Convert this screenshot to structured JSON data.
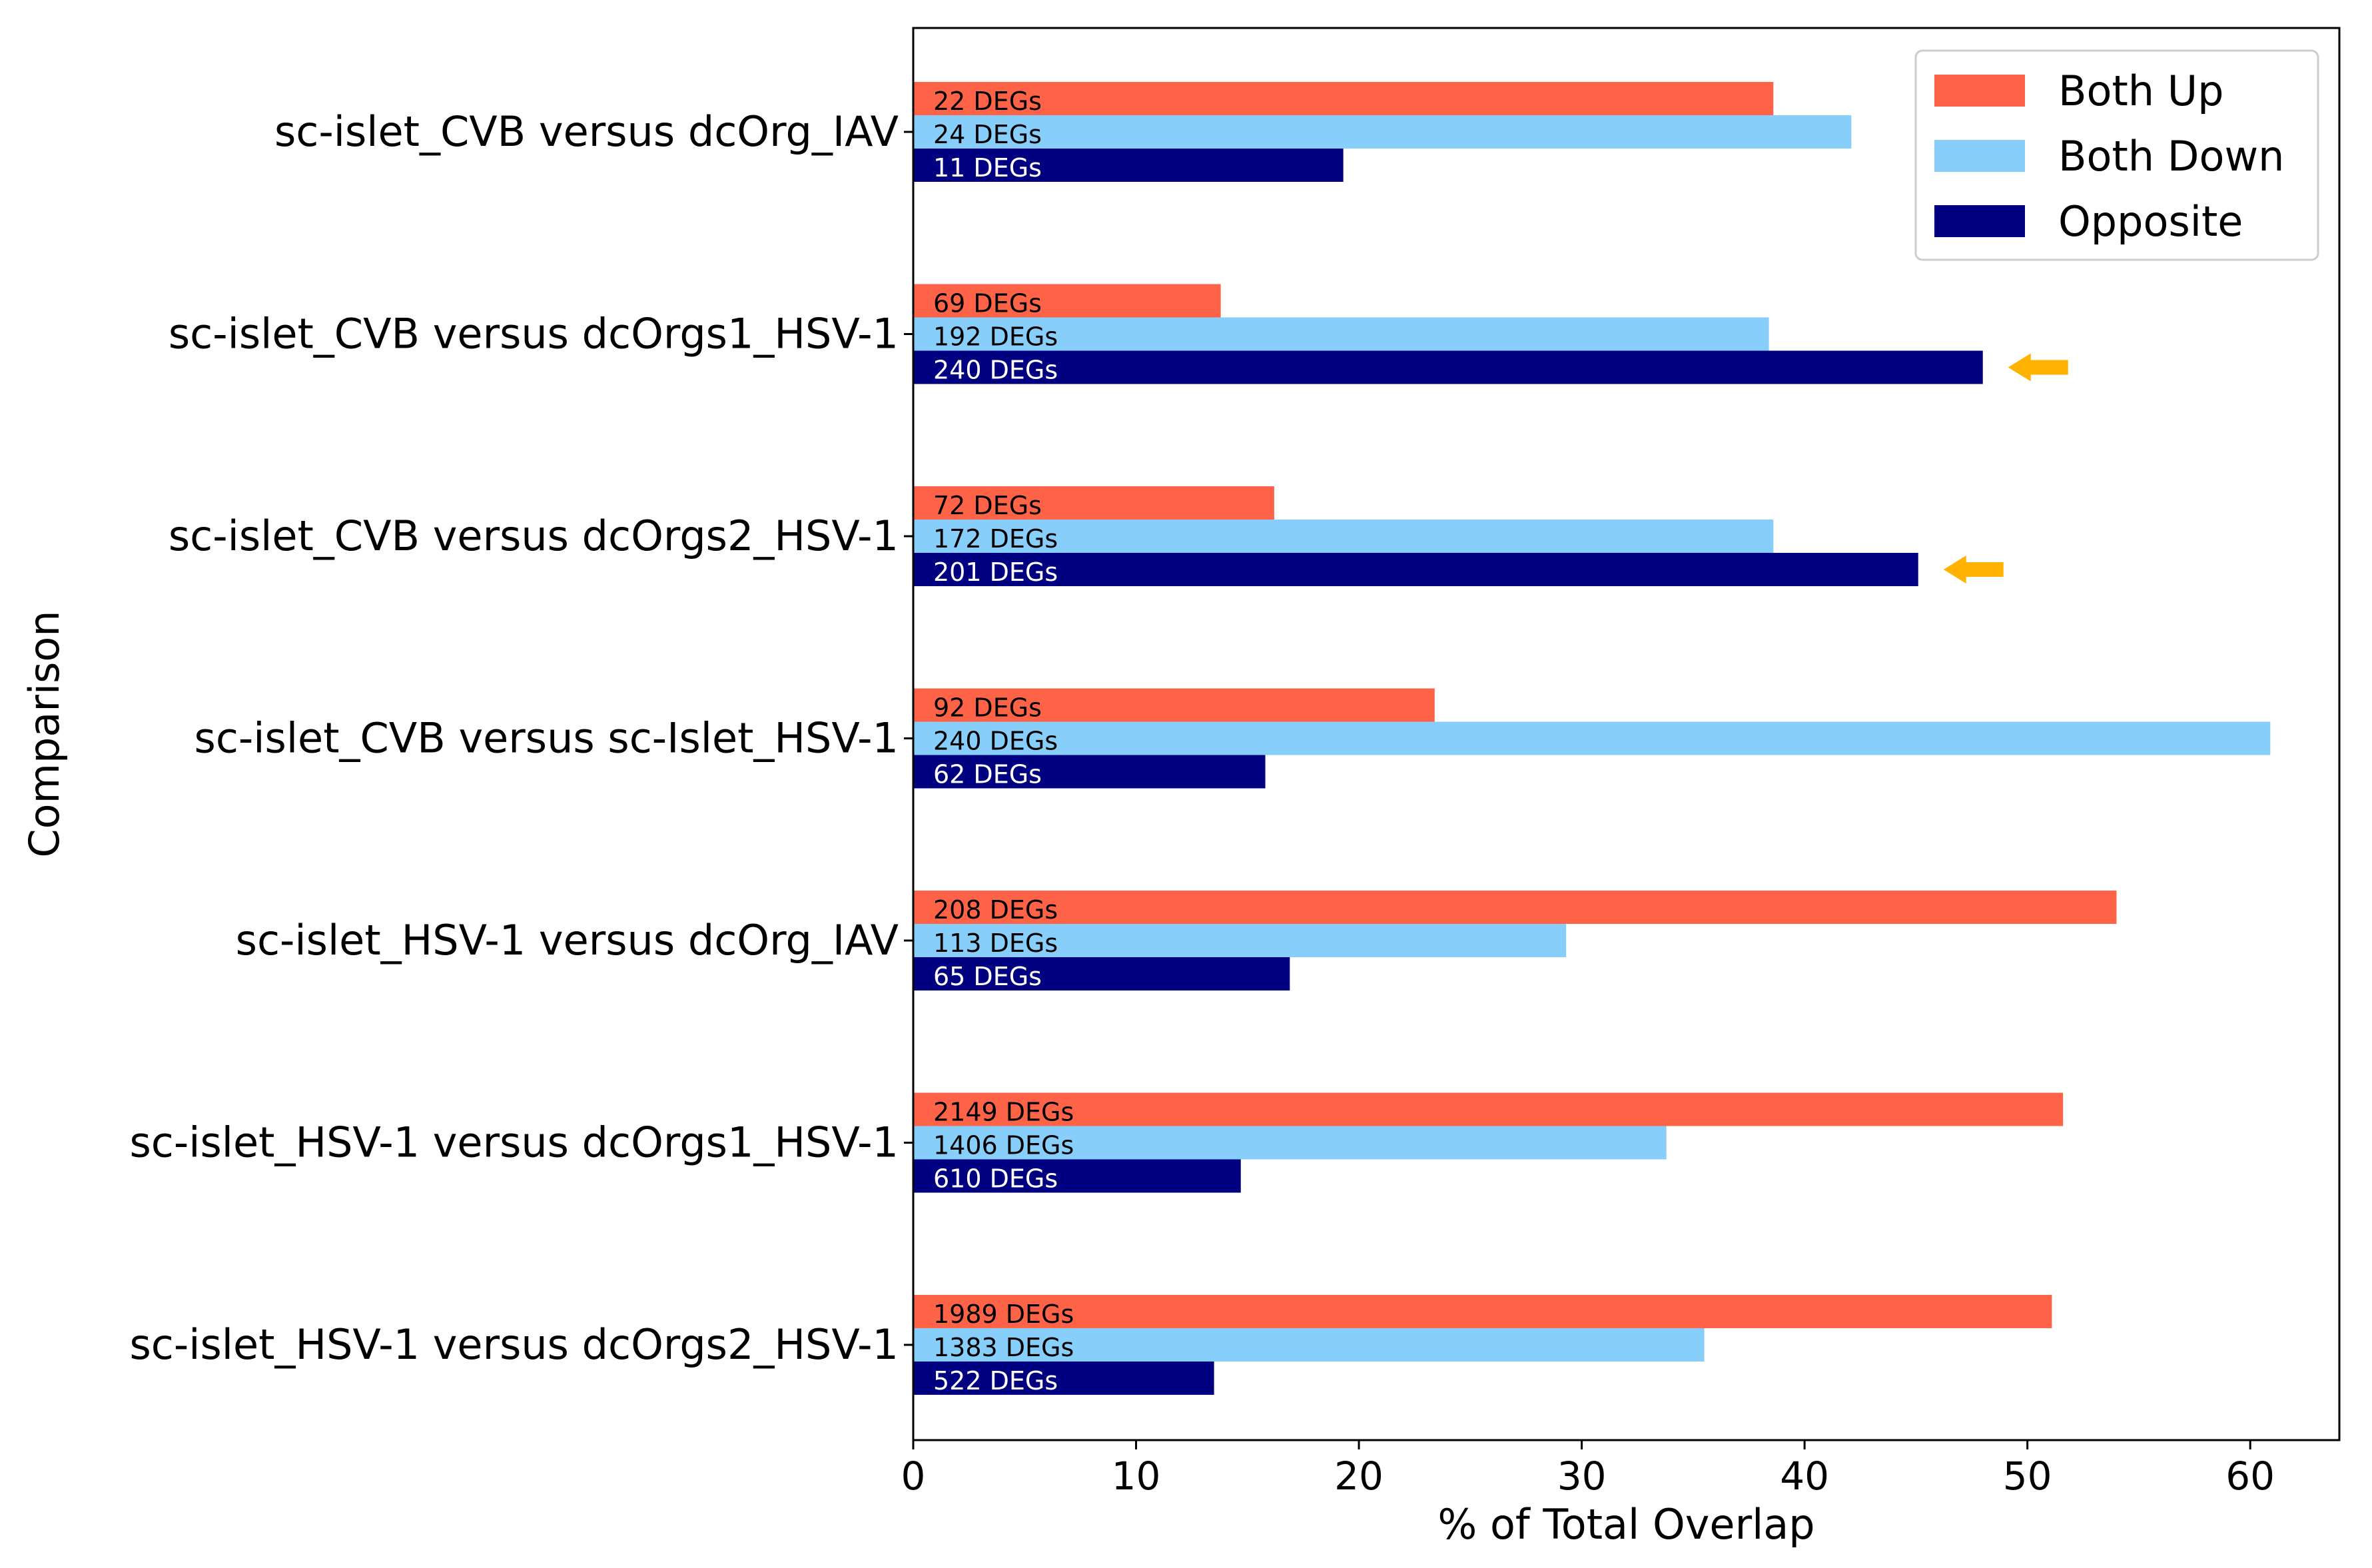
{
  "chart_data": {
    "type": "bar",
    "orientation": "horizontal",
    "xlabel": "% of Total Overlap",
    "ylabel": "Comparison",
    "xlim": [
      0,
      64
    ],
    "xticks": [
      0,
      10,
      20,
      30,
      40,
      50,
      60
    ],
    "grid": false,
    "legend_position": "top-right",
    "categories": [
      "sc-islet_CVB versus dcOrg_IAV",
      "sc-islet_CVB versus dcOrgs1_HSV-1",
      "sc-islet_CVB versus dcOrgs2_HSV-1",
      "sc-islet_CVB versus sc-Islet_HSV-1",
      "sc-islet_HSV-1 versus dcOrg_IAV",
      "sc-islet_HSV-1 versus dcOrgs1_HSV-1",
      "sc-islet_HSV-1 versus dcOrgs2_HSV-1"
    ],
    "series": [
      {
        "name": "Both Up",
        "color": "#FF6347",
        "label_color": "#000000",
        "values": [
          38.6,
          13.8,
          16.2,
          23.4,
          54.0,
          51.6,
          51.1
        ],
        "labels": [
          "22 DEGs",
          "69 DEGs",
          "72 DEGs",
          "92 DEGs",
          "208 DEGs",
          "2149 DEGs",
          "1989 DEGs"
        ]
      },
      {
        "name": "Both Down",
        "color": "#87CEFA",
        "label_color": "#000000",
        "values": [
          42.1,
          38.4,
          38.6,
          60.9,
          29.3,
          33.8,
          35.5
        ],
        "labels": [
          "24 DEGs",
          "192 DEGs",
          "172 DEGs",
          "240 DEGs",
          "113 DEGs",
          "1406 DEGs",
          "1383 DEGs"
        ]
      },
      {
        "name": "Opposite",
        "color": "#000080",
        "label_color": "#FFFFFF",
        "values": [
          19.3,
          48.0,
          45.1,
          15.8,
          16.9,
          14.7,
          13.5
        ],
        "labels": [
          "11 DEGs",
          "240 DEGs",
          "201 DEGs",
          "62 DEGs",
          "65 DEGs",
          "610 DEGs",
          "522 DEGs"
        ]
      }
    ],
    "annotations": [
      {
        "type": "arrow",
        "target_category": 1,
        "target_series": "Opposite",
        "color": "#FFB300"
      },
      {
        "type": "arrow",
        "target_category": 2,
        "target_series": "Opposite",
        "color": "#FFB300"
      }
    ]
  }
}
